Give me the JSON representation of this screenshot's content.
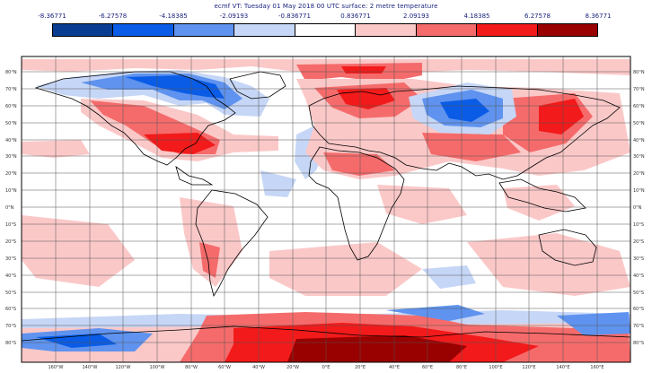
{
  "title": "ecmf VT: Tuesday 01 May 2018 00 UTC surface: 2 metre temperature",
  "colorbar": {
    "labels": [
      "-8.36771",
      "-6.27578",
      "-4.18385",
      "-2.09193",
      "-0.836771",
      "0.836771",
      "2.09193",
      "4.18385",
      "6.27578",
      "8.36771"
    ],
    "colors": [
      "#0a3d91",
      "#0a5ce6",
      "#5f93ef",
      "#c6d6f6",
      "#ffffff",
      "#fbc8c8",
      "#f56b6b",
      "#f21a1a",
      "#990000"
    ]
  },
  "axes": {
    "lon_labels": [
      "160°W",
      "140°W",
      "120°W",
      "100°W",
      "80°W",
      "60°W",
      "40°W",
      "20°W",
      "0°E",
      "20°E",
      "40°E",
      "60°E",
      "80°E",
      "100°E",
      "120°E",
      "140°E",
      "160°E"
    ],
    "lat_labels": [
      "80°N",
      "70°N",
      "60°N",
      "50°N",
      "40°N",
      "30°N",
      "20°N",
      "10°N",
      "0°N",
      "10°S",
      "20°S",
      "30°S",
      "40°S",
      "50°S",
      "60°S",
      "70°S",
      "80°S"
    ]
  },
  "palette": {
    "land_outline": "#000000",
    "grid": "#555555",
    "warm_light": "#fbc8c8",
    "warm_mid": "#f56b6b",
    "warm_strong": "#f21a1a",
    "warm_extreme": "#990000",
    "cold_light": "#c6d6f6",
    "cold_mid": "#5f93ef",
    "cold_strong": "#0a5ce6"
  }
}
